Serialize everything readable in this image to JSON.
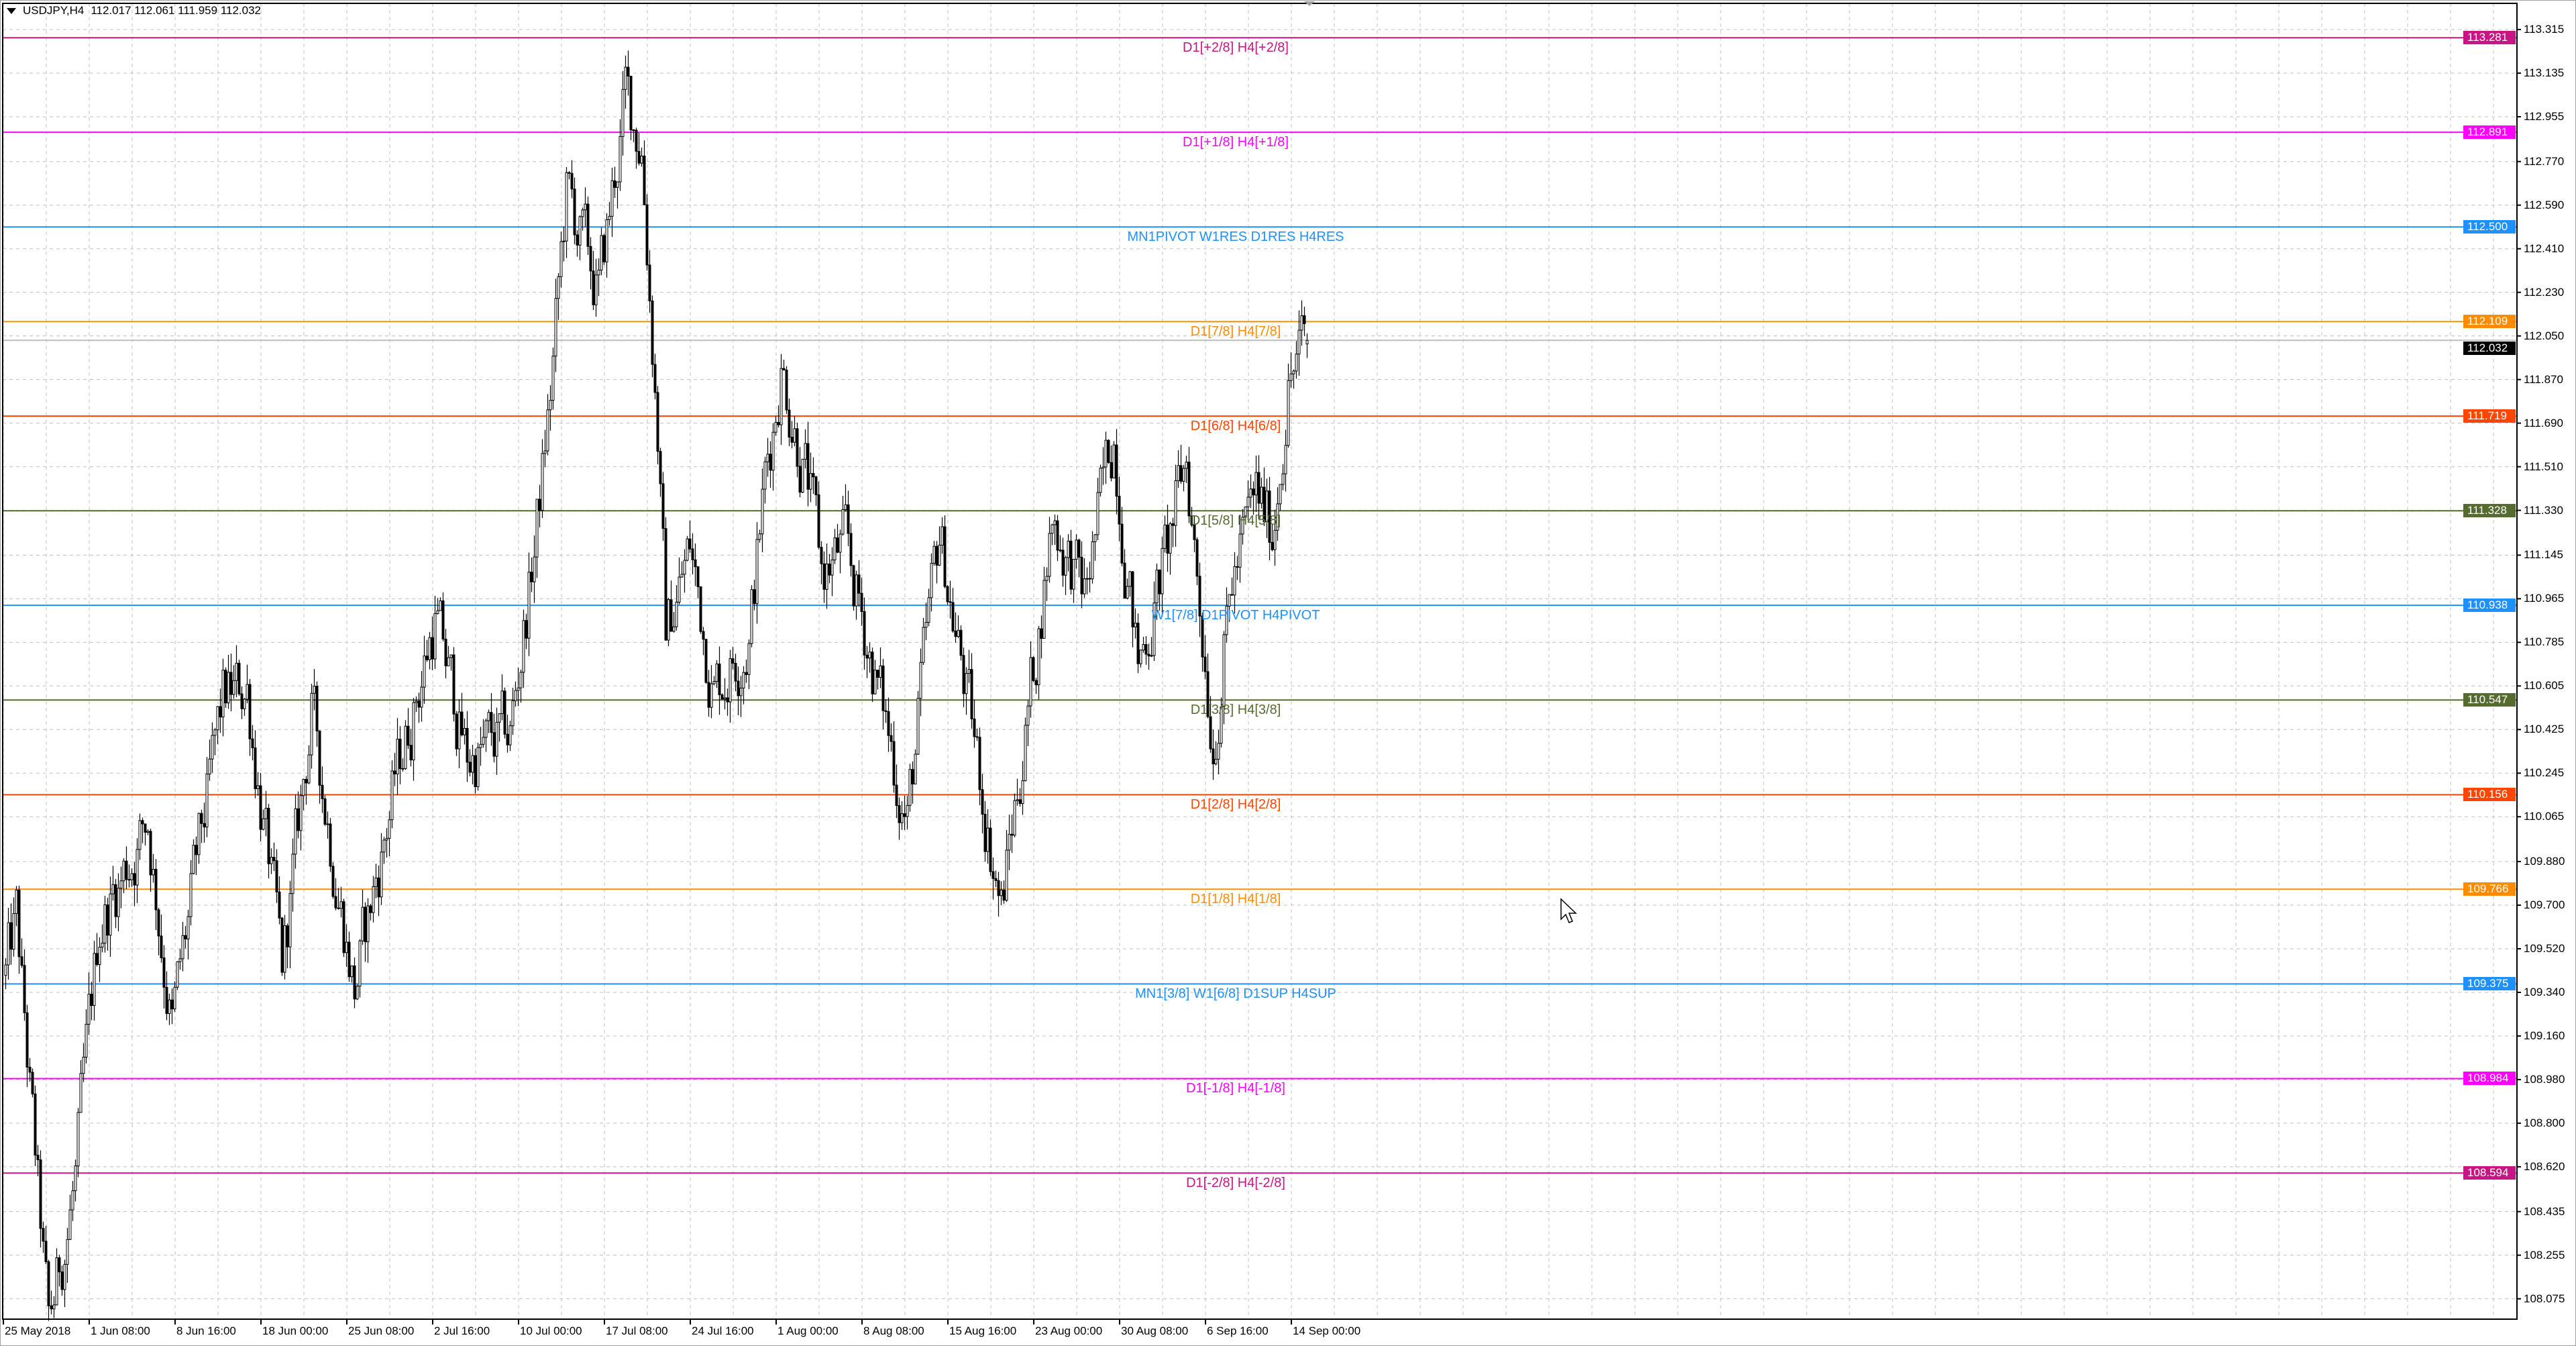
{
  "header": {
    "symbol_timeframe": "USDJPY,H4",
    "ohlc": "112.017 112.061 111.959 112.032"
  },
  "chart_data": {
    "type": "candlestick",
    "symbol": "USDJPY",
    "timeframe": "H4",
    "last_bar": {
      "open": 112.017,
      "high": 112.061,
      "low": 111.959,
      "close": 112.032
    },
    "current_price": "112.032",
    "ylim": [
      107.99,
      113.43
    ],
    "grid": true,
    "y_ticks": [
      "113.315",
      "113.135",
      "112.955",
      "112.770",
      "112.590",
      "112.410",
      "112.230",
      "112.050",
      "111.870",
      "111.690",
      "111.510",
      "111.330",
      "111.145",
      "110.965",
      "110.785",
      "110.605",
      "110.425",
      "110.245",
      "110.065",
      "109.880",
      "109.700",
      "109.520",
      "109.340",
      "109.160",
      "108.980",
      "108.800",
      "108.620",
      "108.435",
      "108.255",
      "108.075"
    ],
    "x_ticks": [
      "25 May 2018",
      "1 Jun 08:00",
      "8 Jun 16:00",
      "18 Jun 00:00",
      "25 Jun 08:00",
      "2 Jul 16:00",
      "10 Jul 00:00",
      "17 Jul 08:00",
      "24 Jul 16:00",
      "1 Aug 00:00",
      "8 Aug 08:00",
      "15 Aug 16:00",
      "23 Aug 00:00",
      "30 Aug 08:00",
      "6 Sep 16:00",
      "14 Sep 00:00"
    ],
    "bars_per_x_tick": 32,
    "bar_count": 486,
    "price_path": [
      [
        0,
        109.41
      ],
      [
        4,
        109.63
      ],
      [
        16,
        107.94
      ],
      [
        26,
        108.57
      ],
      [
        35,
        109.63
      ],
      [
        53,
        110.05
      ],
      [
        62,
        109.2
      ],
      [
        81,
        110.54
      ],
      [
        90,
        110.6
      ],
      [
        103,
        109.41
      ],
      [
        114,
        110.5
      ],
      [
        130,
        109.35
      ],
      [
        145,
        110.2
      ],
      [
        160,
        110.89
      ],
      [
        172,
        110.3
      ],
      [
        188,
        110.4
      ],
      [
        197,
        111.17
      ],
      [
        203,
        111.8
      ],
      [
        209,
        112.64
      ],
      [
        221,
        112.22
      ],
      [
        231,
        113.03
      ],
      [
        237,
        112.85
      ],
      [
        243,
        111.66
      ],
      [
        246,
        110.82
      ],
      [
        255,
        111.17
      ],
      [
        264,
        110.6
      ],
      [
        277,
        110.82
      ],
      [
        283,
        111.45
      ],
      [
        289,
        111.94
      ],
      [
        298,
        111.5
      ],
      [
        304,
        111.07
      ],
      [
        313,
        111.17
      ],
      [
        322,
        110.75
      ],
      [
        336,
        110.05
      ],
      [
        348,
        111.24
      ],
      [
        359,
        110.5
      ],
      [
        371,
        109.69
      ],
      [
        384,
        110.75
      ],
      [
        390,
        111.31
      ],
      [
        402,
        110.96
      ],
      [
        413,
        111.66
      ],
      [
        422,
        110.68
      ],
      [
        433,
        111.17
      ],
      [
        440,
        111.53
      ],
      [
        450,
        110.4
      ],
      [
        457,
        111.03
      ],
      [
        466,
        111.38
      ],
      [
        472,
        111.24
      ],
      [
        478,
        111.87
      ],
      [
        485,
        112.032
      ]
    ],
    "levels": [
      {
        "price": "113.281",
        "label": "D1[+2/8] H4[+2/8]",
        "color": "#c71585"
      },
      {
        "price": "112.891",
        "label": "D1[+1/8] H4[+1/8]",
        "color": "#ff00ff"
      },
      {
        "price": "112.500",
        "label": "MN1PIVOT W1RES D1RES H4RES",
        "color": "#1e90ff"
      },
      {
        "price": "112.109",
        "label": "D1[7/8] H4[7/8]",
        "color": "#ff8c00"
      },
      {
        "price": "111.719",
        "label": "D1[6/8] H4[6/8]",
        "color": "#ff4500"
      },
      {
        "price": "111.328",
        "label": "D1[5/8] H4[5/8]",
        "color": "#556b2f"
      },
      {
        "price": "110.938",
        "label": "W1[7/8] D1PIVOT H4PIVOT",
        "color": "#1e90ff"
      },
      {
        "price": "110.547",
        "label": "D1[3/8] H4[3/8]",
        "color": "#556b2f"
      },
      {
        "price": "110.156",
        "label": "D1[2/8] H4[2/8]",
        "color": "#ff4500"
      },
      {
        "price": "109.766",
        "label": "D1[1/8] H4[1/8]",
        "color": "#ff8c00"
      },
      {
        "price": "109.375",
        "label": "MN1[3/8] W1[6/8] D1SUP H4SUP",
        "color": "#1e90ff"
      },
      {
        "price": "108.984",
        "label": "D1[-1/8] H4[-1/8]",
        "color": "#ff00ff"
      },
      {
        "price": "108.594",
        "label": "D1[-2/8] H4[-2/8]",
        "color": "#c71585"
      }
    ],
    "colors": {
      "bull_body": "#ffffff",
      "bear_body": "#000000",
      "wick": "#000000",
      "grid": "#c0c0c0",
      "current_price_badge": "#000000"
    }
  },
  "icons": {
    "menu": "triangle-down-icon",
    "cursor": "mouse-pointer-icon",
    "scroll_marker": "triangle-down-icon"
  }
}
